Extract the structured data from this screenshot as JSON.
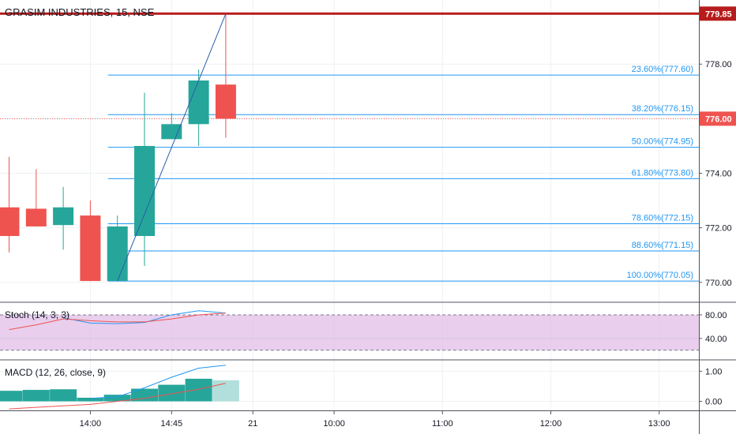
{
  "header": {
    "symbol_label": "GRASIM INDUSTRIES, 15, NSE"
  },
  "colors": {
    "up": "#26a69a",
    "down": "#ef5350",
    "fib": "#2196f3",
    "stoch_k": "#2196f3",
    "stoch_d": "#ef5350",
    "stoch_band": "#e1bee7",
    "macd_line": "#2196f3",
    "signal_line": "#ef5350",
    "hist_up": "#26a69a",
    "hist_fading": "#b2dfdb",
    "top_line": "#b71c1c",
    "current_price_bg": "#ef5350"
  },
  "chart_data": [
    {
      "type": "candlestick",
      "title": "GRASIM INDUSTRIES, 15, NSE",
      "ylim": [
        769.3,
        780.35
      ],
      "yticks": [
        "778.00",
        "776.00",
        "774.00",
        "772.00",
        "770.00"
      ],
      "yticks_values": [
        778,
        776,
        774,
        772,
        770
      ],
      "candles": [
        {
          "o": 772.75,
          "h": 774.6,
          "l": 771.1,
          "c": 771.7
        },
        {
          "o": 772.7,
          "h": 774.15,
          "l": 772.05,
          "c": 772.05
        },
        {
          "o": 772.1,
          "h": 773.5,
          "l": 771.2,
          "c": 772.75
        },
        {
          "o": 772.45,
          "h": 773.0,
          "l": 770.05,
          "c": 770.05
        },
        {
          "o": 770.05,
          "h": 772.45,
          "l": 770.05,
          "c": 772.05
        },
        {
          "o": 771.7,
          "h": 776.95,
          "l": 770.6,
          "c": 775.0
        },
        {
          "o": 775.25,
          "h": 776.2,
          "l": 775.25,
          "c": 775.8
        },
        {
          "o": 775.8,
          "h": 777.8,
          "l": 775.0,
          "c": 777.4
        },
        {
          "o": 777.25,
          "h": 779.85,
          "l": 775.3,
          "c": 776.0
        }
      ],
      "horizontal_line": {
        "value": 779.85,
        "label": "779.85"
      },
      "current_price": {
        "value": 776.0,
        "label": "776.00"
      },
      "fib_levels": [
        {
          "value": 777.6,
          "label": "23.60%(777.60)"
        },
        {
          "value": 776.15,
          "label": "38.20%(776.15)"
        },
        {
          "value": 774.95,
          "label": "50.00%(774.95)"
        },
        {
          "value": 773.8,
          "label": "61.80%(773.80)"
        },
        {
          "value": 772.15,
          "label": "78.60%(772.15)"
        },
        {
          "value": 771.15,
          "label": "88.60%(771.15)"
        },
        {
          "value": 770.05,
          "label": "100.00%(770.05)"
        }
      ],
      "trend_line": {
        "from_candle": 4,
        "from_value": 770.05,
        "to_candle": 8,
        "to_value": 779.85
      }
    },
    {
      "type": "line",
      "title": "Stoch (14, 3, 3)",
      "ylim": [
        5,
        100
      ],
      "yticks": [
        "80.00",
        "40.00"
      ],
      "yticks_values": [
        80,
        40
      ],
      "band": [
        20,
        80
      ],
      "series": [
        {
          "name": "%K",
          "values": [
            null,
            null,
            75,
            66,
            65,
            67,
            80,
            87,
            83
          ]
        },
        {
          "name": "%D",
          "values": [
            55,
            63,
            73,
            70,
            68,
            68,
            73,
            80,
            83
          ]
        }
      ]
    },
    {
      "type": "bar",
      "title": "MACD (12, 26, close, 9)",
      "ylim": [
        -0.3,
        1.35
      ],
      "yticks": [
        "1.00",
        "0.00"
      ],
      "yticks_values": [
        1,
        0
      ],
      "histogram": [
        0.35,
        0.38,
        0.4,
        0.12,
        0.22,
        0.42,
        0.55,
        0.75,
        0.7
      ],
      "histogram_fading": [
        false,
        false,
        false,
        false,
        false,
        false,
        false,
        false,
        true
      ],
      "series": [
        {
          "name": "MACD",
          "values": [
            null,
            null,
            null,
            0.1,
            0.15,
            0.45,
            0.8,
            1.1,
            1.2
          ]
        },
        {
          "name": "Signal",
          "values": [
            -0.25,
            -0.2,
            -0.15,
            -0.1,
            0.0,
            0.1,
            0.25,
            0.4,
            0.6
          ]
        }
      ]
    }
  ],
  "x_axis": {
    "labels": [
      "14:00",
      "14:45",
      "21",
      "10:00",
      "11:00",
      "12:00",
      "13:00"
    ],
    "positions_candle_index": [
      3,
      6,
      9,
      12,
      16,
      20,
      24
    ]
  }
}
